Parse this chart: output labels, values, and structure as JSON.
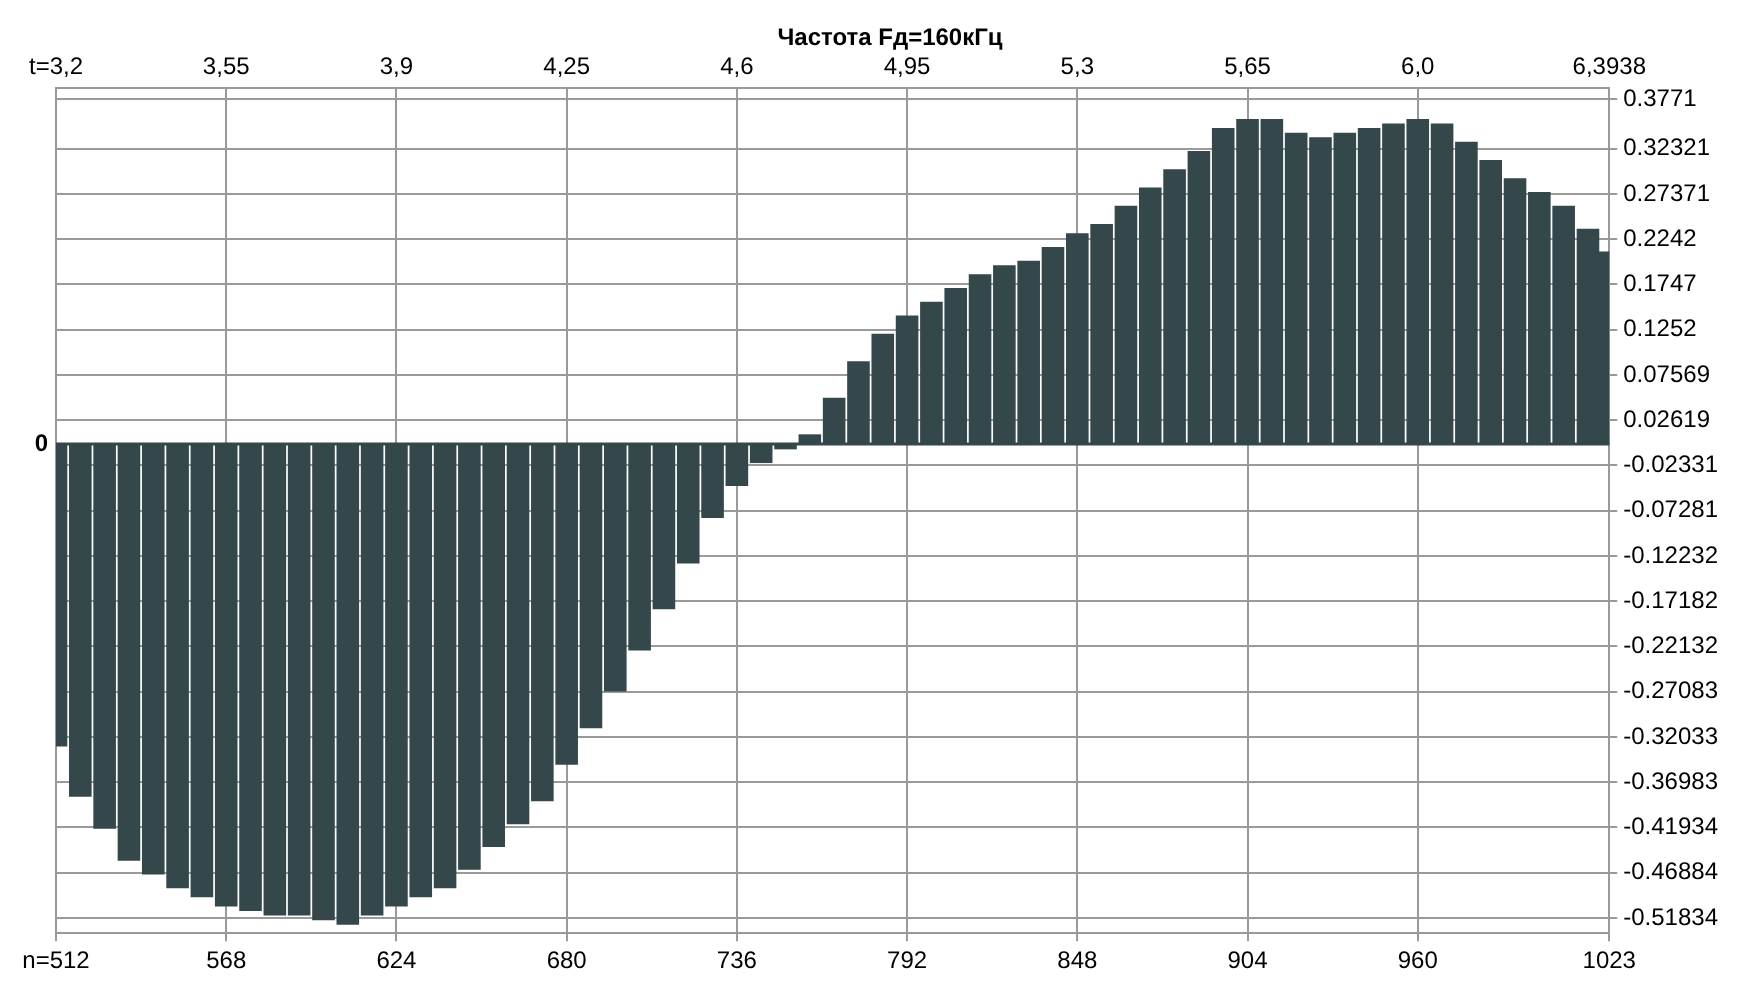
{
  "chart_data": {
    "type": "bar",
    "title": "Частота Fд=160кГц",
    "x": [
      512,
      520,
      528,
      536,
      544,
      552,
      560,
      568,
      576,
      584,
      592,
      600,
      608,
      616,
      624,
      632,
      640,
      648,
      656,
      664,
      672,
      680,
      688,
      696,
      704,
      712,
      720,
      728,
      736,
      744,
      752,
      760,
      768,
      776,
      784,
      792,
      800,
      808,
      816,
      824,
      832,
      840,
      848,
      856,
      864,
      872,
      880,
      888,
      896,
      904,
      912,
      920,
      928,
      936,
      944,
      952,
      960,
      968,
      976,
      984,
      992,
      1000,
      1008,
      1016,
      1023
    ],
    "values": [
      -0.33,
      -0.385,
      -0.42,
      -0.455,
      -0.47,
      -0.485,
      -0.495,
      -0.505,
      -0.51,
      -0.515,
      -0.515,
      -0.52,
      -0.525,
      -0.515,
      -0.505,
      -0.495,
      -0.485,
      -0.465,
      -0.44,
      -0.415,
      -0.39,
      -0.35,
      -0.31,
      -0.27,
      -0.225,
      -0.18,
      -0.13,
      -0.08,
      -0.045,
      -0.02,
      -0.005,
      0.01,
      0.05,
      0.09,
      0.12,
      0.14,
      0.155,
      0.17,
      0.185,
      0.195,
      0.2,
      0.215,
      0.23,
      0.24,
      0.26,
      0.28,
      0.3,
      0.32,
      0.345,
      0.355,
      0.355,
      0.34,
      0.335,
      0.34,
      0.345,
      0.35,
      0.355,
      0.35,
      0.33,
      0.31,
      0.29,
      0.275,
      0.26,
      0.235,
      0.21
    ],
    "color": "#34474b",
    "xlim": [
      512,
      1023
    ],
    "xticks": [
      {
        "value": 512,
        "label": "n=512"
      },
      568,
      624,
      680,
      736,
      792,
      848,
      904,
      960,
      1023
    ],
    "x2lim": [
      3.2,
      6.3938
    ],
    "x2ticks": [
      {
        "value": 3.2,
        "label": "t=3,2"
      },
      {
        "value": 3.55,
        "label": "3,55"
      },
      {
        "value": 3.9,
        "label": "3,9"
      },
      {
        "value": 4.25,
        "label": "4,25"
      },
      {
        "value": 4.6,
        "label": "4,6"
      },
      {
        "value": 4.95,
        "label": "4,95"
      },
      {
        "value": 5.3,
        "label": "5,3"
      },
      {
        "value": 5.65,
        "label": "5,65"
      },
      {
        "value": 6.0,
        "label": "6,0"
      },
      {
        "value": 6.3938,
        "label": "6,3938"
      }
    ],
    "ylim": [
      -0.535,
      0.39
    ],
    "yticks": [
      0.3771,
      0.32321,
      0.27371,
      0.2242,
      0.1747,
      0.1252,
      0.07569,
      0.02619,
      -0.02331,
      -0.07281,
      -0.12232,
      -0.17182,
      -0.22132,
      -0.27083,
      -0.32033,
      -0.36983,
      -0.41934,
      -0.46884,
      -0.51834
    ],
    "ref_lines": [
      {
        "axis": "y",
        "value": 0,
        "label": "0",
        "color": "#34474b"
      }
    ],
    "grid": true,
    "legend": false
  }
}
